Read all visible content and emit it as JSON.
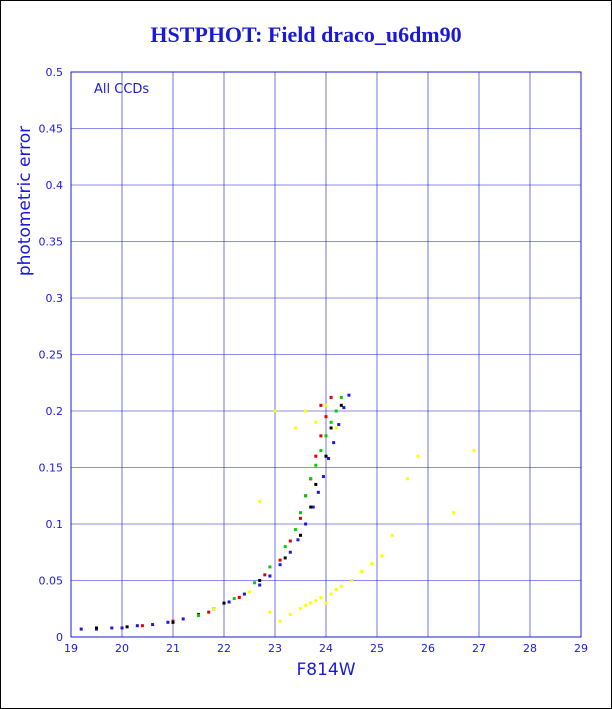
{
  "chart_data": {
    "type": "scatter",
    "title": "HSTPHOT: Field draco_u6dm90",
    "xlabel": "F814W",
    "ylabel": "photometric error",
    "annotation": "All CCDs",
    "xlim": [
      19,
      29
    ],
    "ylim": [
      0,
      0.5
    ],
    "xticks": [
      19,
      20,
      21,
      22,
      23,
      24,
      25,
      26,
      27,
      28,
      29
    ],
    "yticks": [
      0,
      0.05,
      0.1,
      0.15,
      0.2,
      0.25,
      0.3,
      0.35,
      0.4,
      0.45,
      0.5
    ],
    "grid": true,
    "colors": {
      "axes": "#1a1ad6",
      "grid": "#1a1ad6",
      "title": "#1a1ad6",
      "series": [
        "#1a1ad6",
        "#e00000",
        "#00d000",
        "#000000",
        "#ffff00"
      ]
    },
    "series": [
      {
        "color": "#1a1ad6",
        "x": [
          19.2,
          19.5,
          19.8,
          20.0,
          20.3,
          20.6,
          20.9,
          21.2,
          21.5,
          21.8,
          22.1,
          22.4,
          22.7,
          22.9,
          23.1,
          23.3,
          23.45,
          23.6,
          23.75,
          23.85,
          23.95,
          24.05,
          24.15,
          24.25,
          24.35,
          24.45
        ],
        "y": [
          0.007,
          0.007,
          0.008,
          0.008,
          0.01,
          0.011,
          0.013,
          0.016,
          0.02,
          0.025,
          0.031,
          0.038,
          0.046,
          0.054,
          0.064,
          0.075,
          0.086,
          0.1,
          0.115,
          0.128,
          0.142,
          0.158,
          0.172,
          0.188,
          0.203,
          0.214
        ]
      },
      {
        "color": "#e00000",
        "x": [
          20.4,
          21.0,
          21.7,
          22.3,
          22.8,
          23.1,
          23.3,
          23.5,
          23.6,
          23.7,
          23.8,
          23.9,
          24.0,
          23.9,
          24.1
        ],
        "y": [
          0.01,
          0.014,
          0.022,
          0.035,
          0.055,
          0.068,
          0.085,
          0.105,
          0.125,
          0.14,
          0.16,
          0.178,
          0.195,
          0.205,
          0.212
        ]
      },
      {
        "color": "#00d000",
        "x": [
          21.5,
          22.2,
          22.6,
          22.9,
          23.2,
          23.4,
          23.5,
          23.6,
          23.7,
          23.8,
          23.9,
          24.0,
          24.1,
          24.2,
          24.3
        ],
        "y": [
          0.019,
          0.034,
          0.048,
          0.062,
          0.08,
          0.095,
          0.11,
          0.125,
          0.14,
          0.152,
          0.165,
          0.178,
          0.19,
          0.2,
          0.212
        ]
      },
      {
        "color": "#000000",
        "x": [
          19.5,
          20.1,
          21.0,
          22.0,
          22.7,
          23.2,
          23.5,
          23.7,
          23.8,
          24.0,
          24.1,
          24.3
        ],
        "y": [
          0.008,
          0.009,
          0.013,
          0.03,
          0.05,
          0.07,
          0.09,
          0.115,
          0.135,
          0.16,
          0.185,
          0.205
        ]
      },
      {
        "color": "#ffff00",
        "x": [
          21.8,
          22.5,
          22.9,
          23.1,
          23.3,
          23.5,
          23.6,
          23.7,
          23.8,
          23.9,
          24.0,
          24.1,
          24.2,
          24.3,
          24.5,
          24.7,
          24.9,
          25.1,
          25.3,
          25.6,
          25.8,
          26.5,
          26.9,
          23.4,
          23.6,
          23.8,
          24.0,
          24.2,
          22.7,
          23.0
        ],
        "y": [
          0.025,
          0.04,
          0.022,
          0.014,
          0.02,
          0.025,
          0.028,
          0.03,
          0.032,
          0.035,
          0.03,
          0.038,
          0.042,
          0.045,
          0.05,
          0.058,
          0.065,
          0.072,
          0.09,
          0.14,
          0.16,
          0.11,
          0.165,
          0.185,
          0.2,
          0.19,
          0.205,
          0.185,
          0.12,
          0.2
        ]
      }
    ]
  }
}
